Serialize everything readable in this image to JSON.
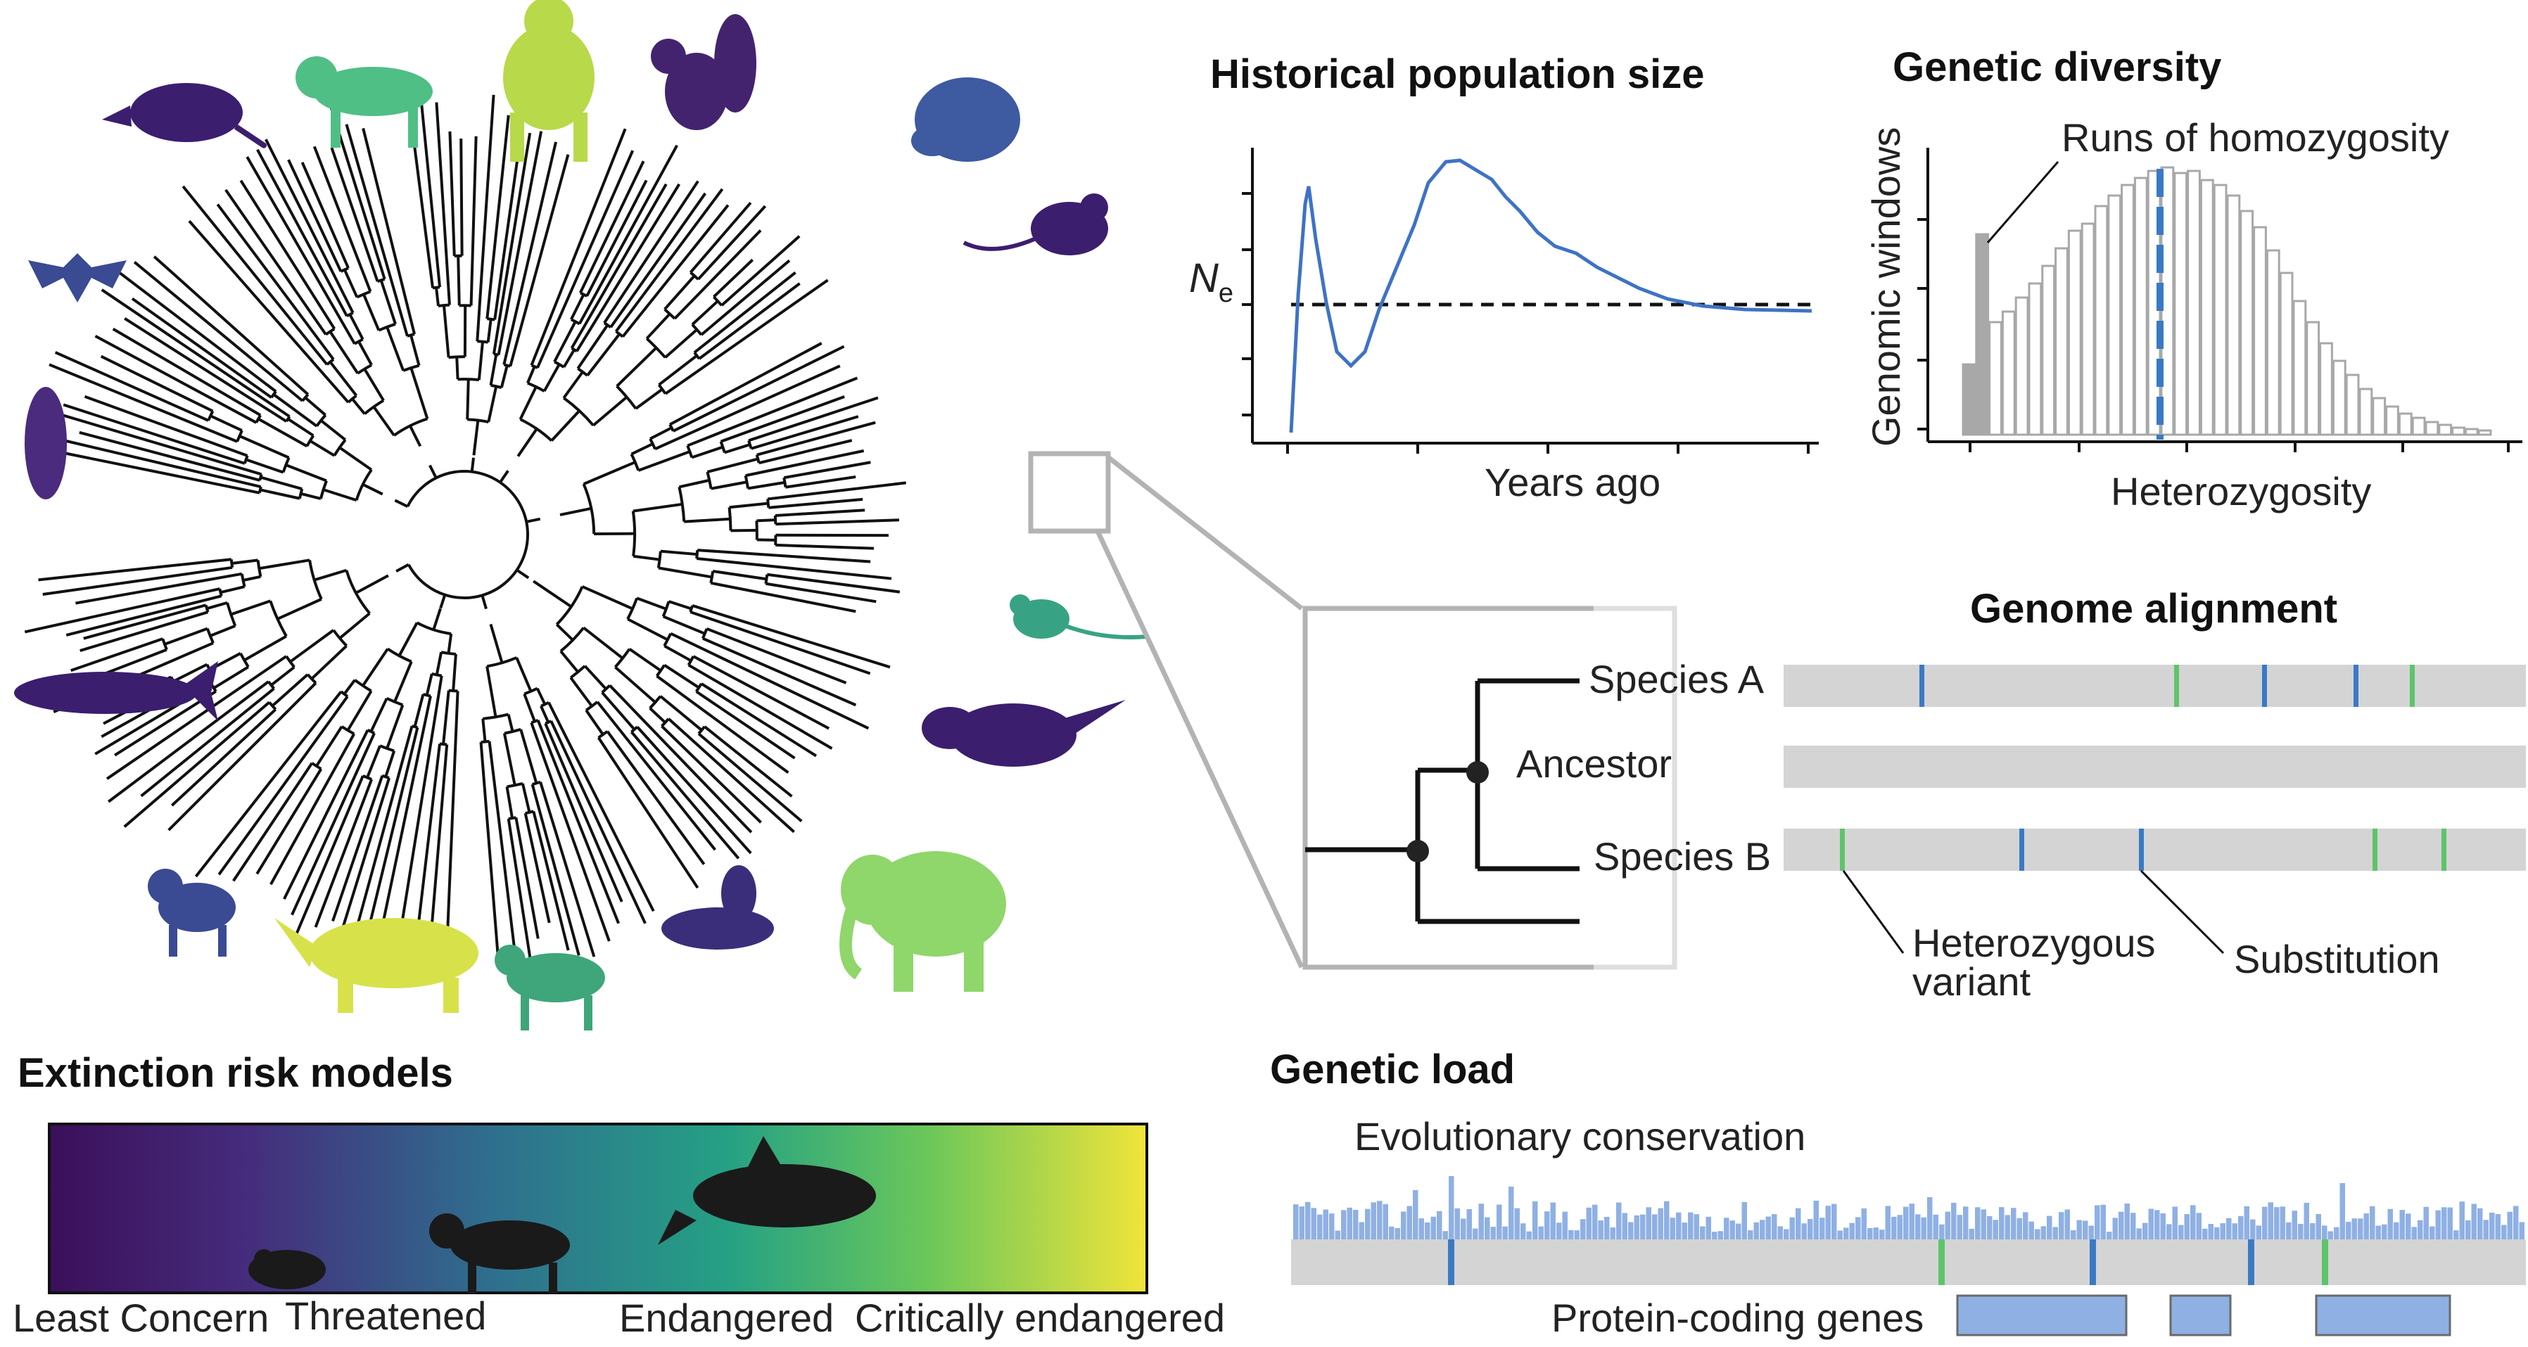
{
  "population_panel": {
    "title": "Historical population size",
    "ylabel": "N",
    "ylabel_sub": "e",
    "xlabel": "Years ago"
  },
  "diversity_panel": {
    "title": "Genetic diversity",
    "ylabel": "Genomic windows",
    "xlabel": "Heterozygosity",
    "annotation": "Runs of homozygosity"
  },
  "alignment_panel": {
    "title": "Genome alignment",
    "species_a": "Species A",
    "ancestor": "Ancestor",
    "species_b": "Species B",
    "het_label_line1": "Heterozygous",
    "het_label_line2": "variant",
    "substitution_label": "Substitution"
  },
  "extinction_panel": {
    "title": "Extinction risk models",
    "categories": [
      "Least Concern",
      "Threatened",
      "Endangered",
      "Critically endangered"
    ],
    "gradient_colors": [
      "#3b0f5a",
      "#452c7c",
      "#2f6e8e",
      "#25a184",
      "#6ac75a",
      "#f1e43a"
    ]
  },
  "load_panel": {
    "title": "Genetic load",
    "conservation_label": "Evolutionary conservation",
    "genes_label": "Protein-coding genes"
  },
  "colors": {
    "line_blue": "#3e73c4",
    "bar_blue": "#8fb0e3",
    "marker_blue": "#3a7ac4",
    "marker_green": "#5ec46b",
    "track_gray": "#d4d4d4",
    "roh_gray": "#a8a8a8",
    "zoom_gray": "#b3b3b3"
  },
  "silhouettes": [
    {
      "name": "opossum-icon",
      "color": "#3b1e6e"
    },
    {
      "name": "monkey-icon",
      "color": "#4fbf86"
    },
    {
      "name": "chimpanzee-icon",
      "color": "#b8d94a"
    },
    {
      "name": "squirrel-icon",
      "color": "#44236e"
    },
    {
      "name": "porcupine-icon",
      "color": "#3e5aa0"
    },
    {
      "name": "rat-icon",
      "color": "#3b1e6e"
    },
    {
      "name": "bat-icon",
      "color": "#3a4a93"
    },
    {
      "name": "hanging-bat-icon",
      "color": "#4a2b7e"
    },
    {
      "name": "whale-icon",
      "color": "#3b1e6e"
    },
    {
      "name": "jerboa-icon",
      "color": "#38a384"
    },
    {
      "name": "anteater-icon",
      "color": "#3b1e6e"
    },
    {
      "name": "ram-icon",
      "color": "#3a4a93"
    },
    {
      "name": "rhino-icon",
      "color": "#d7e24a"
    },
    {
      "name": "cat-icon",
      "color": "#3ea67a"
    },
    {
      "name": "seal-icon",
      "color": "#3a2e7a"
    },
    {
      "name": "elephant-icon",
      "color": "#8fd66b"
    }
  ]
}
